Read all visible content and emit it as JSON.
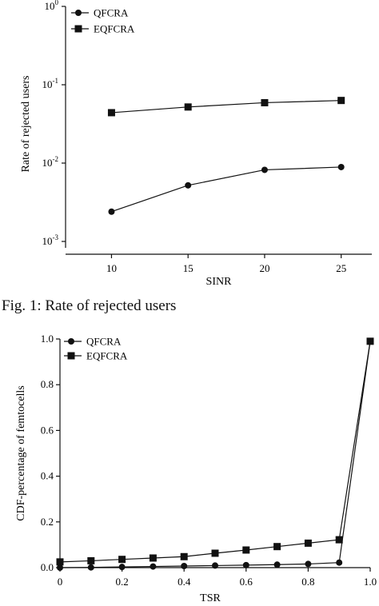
{
  "caption": "Fig. 1: Rate of rejected users",
  "chart_data": [
    {
      "type": "line",
      "xlabel": "SINR",
      "ylabel": "Rate of rejected users",
      "yscale": "log",
      "xlim": [
        7,
        27
      ],
      "ylim": [
        0.001,
        1
      ],
      "xticks": [
        10,
        15,
        20,
        25
      ],
      "xtick_labels": [
        "10",
        "15",
        "20",
        "25"
      ],
      "yticks": [
        0.001,
        0.01,
        0.1,
        1
      ],
      "ytick_labels": [
        {
          "base": "10",
          "exp": "-3"
        },
        {
          "base": "10",
          "exp": "-2"
        },
        {
          "base": "10",
          "exp": "-1"
        },
        {
          "base": "10",
          "exp": "0"
        }
      ],
      "x": [
        10,
        15,
        20,
        25
      ],
      "series": [
        {
          "name": "QFCRA",
          "marker": "circle",
          "values": [
            0.0024,
            0.0052,
            0.0082,
            0.0089
          ]
        },
        {
          "name": "EQFCRA",
          "marker": "square",
          "values": [
            0.044,
            0.052,
            0.059,
            0.063
          ]
        }
      ],
      "grid": false,
      "legend": "top-left"
    },
    {
      "type": "line",
      "xlabel": "TSR",
      "ylabel": "CDF-percentage of femtocells",
      "yscale": "linear",
      "xlim": [
        0,
        1
      ],
      "ylim": [
        0,
        1
      ],
      "xticks": [
        0,
        0.2,
        0.4,
        0.6,
        0.8,
        1.0
      ],
      "xtick_labels": [
        "0",
        "0.2",
        "0.4",
        "0.6",
        "0.8",
        "1.0"
      ],
      "yticks": [
        0,
        0.2,
        0.4,
        0.6,
        0.8,
        1.0
      ],
      "ytick_labels": [
        "0.0",
        "0.2",
        "0.4",
        "0.6",
        "0.8",
        "1.0"
      ],
      "x": [
        0,
        0.1,
        0.2,
        0.3,
        0.4,
        0.5,
        0.6,
        0.7,
        0.8,
        0.9,
        1.0
      ],
      "series": [
        {
          "name": "QFCRA",
          "marker": "circle",
          "values": [
            0.0,
            0.001,
            0.003,
            0.005,
            0.007,
            0.009,
            0.011,
            0.013,
            0.016,
            0.022,
            0.99
          ]
        },
        {
          "name": "EQFCRA",
          "marker": "square",
          "values": [
            0.025,
            0.03,
            0.036,
            0.042,
            0.048,
            0.063,
            0.077,
            0.092,
            0.107,
            0.122,
            0.99
          ]
        }
      ],
      "grid": false,
      "legend": "top-left"
    }
  ]
}
